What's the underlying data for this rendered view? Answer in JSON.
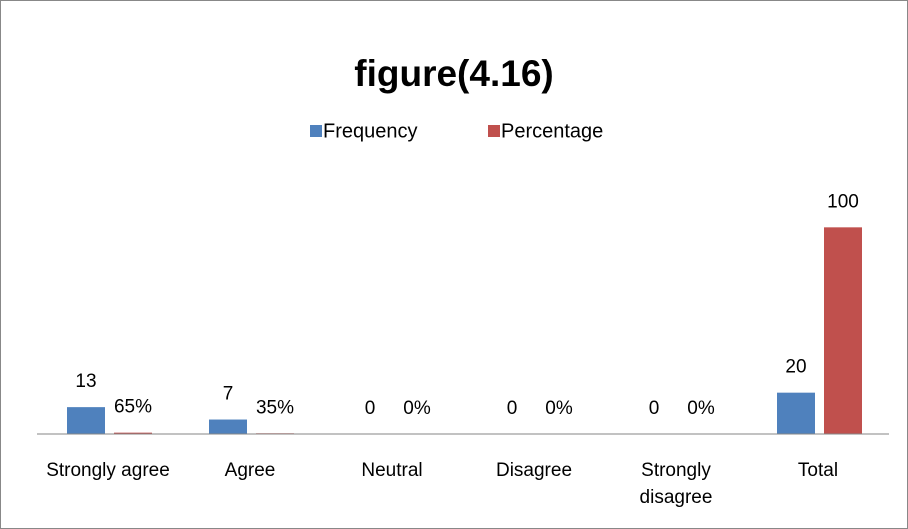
{
  "chart_data": {
    "type": "bar",
    "title": "figure(4.16)",
    "categories": [
      "Strongly agree",
      "Agree",
      "Neutral",
      "Disagree",
      "Strongly disagree",
      "Total"
    ],
    "series": [
      {
        "name": "Frequency",
        "color": "#4f81bd",
        "values": [
          13,
          7,
          0,
          0,
          0,
          20
        ]
      },
      {
        "name": "Percentage",
        "color": "#c0504d",
        "values": [
          0.65,
          0.35,
          0,
          0,
          0,
          100
        ],
        "value_labels": [
          "65%",
          "35%",
          "0%",
          "0%",
          "0%",
          "100"
        ]
      }
    ],
    "ylim": [
      0,
      120
    ],
    "legend": "top",
    "grid": false
  }
}
